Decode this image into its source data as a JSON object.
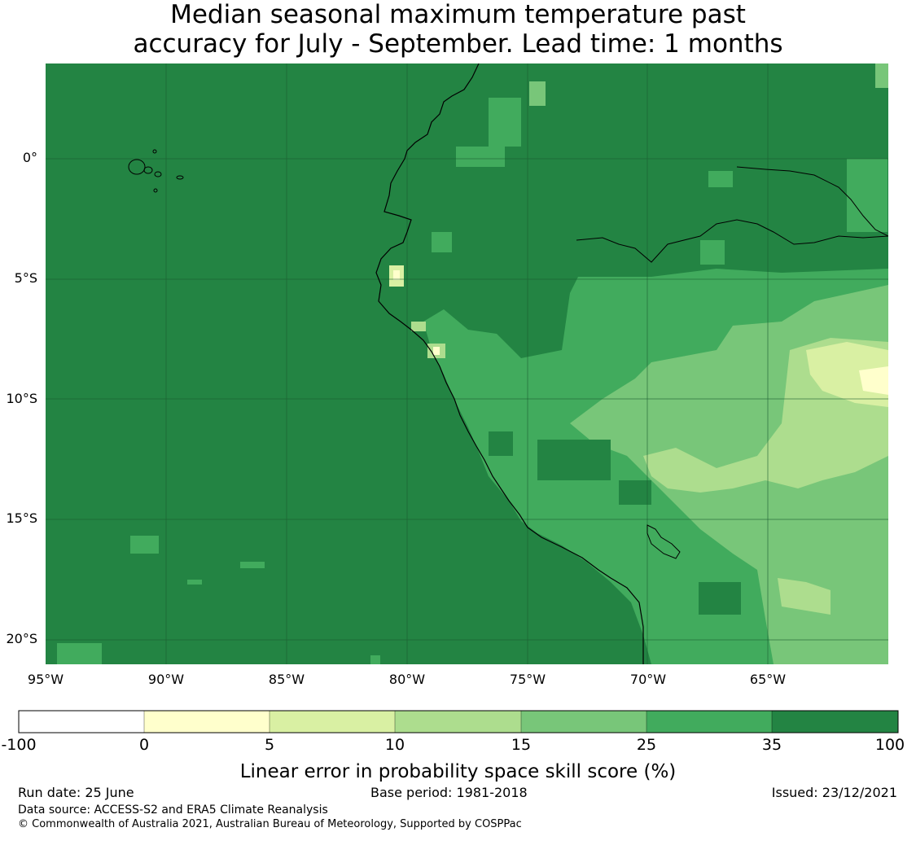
{
  "title": {
    "line1": "Median seasonal maximum temperature past",
    "line2": "accuracy for July - September. Lead time: 1 months"
  },
  "map": {
    "lat_labels": [
      "0°",
      "5°S",
      "10°S",
      "15°S",
      "20°S"
    ],
    "lon_labels": [
      "95°W",
      "90°W",
      "85°W",
      "80°W",
      "75°W",
      "70°W",
      "65°W"
    ],
    "region": "Western South America / Eastern Pacific",
    "colors": {
      "ocean_and_north": "#238443",
      "mid": "#41ab5d",
      "inland": "#78c679",
      "high_skill_light": "#addd8e",
      "lighter": "#d9f0a3",
      "lightest": "#ffffcc"
    }
  },
  "colorbar": {
    "tick_labels": [
      "-100",
      "0",
      "5",
      "10",
      "15",
      "25",
      "35",
      "100"
    ],
    "colors": [
      "#ffffff",
      "#ffffcc",
      "#d9f0a3",
      "#addd8e",
      "#78c679",
      "#41ab5d",
      "#238443"
    ],
    "title": "Linear error in probability space skill score (%)"
  },
  "footer": {
    "run_date": "Run date: 25 June",
    "base_period": "Base period: 1981-2018",
    "issued": "Issued: 23/12/2021",
    "data_source": "Data source: ACCESS-S2 and ERA5 Climate Reanalysis",
    "copyright": "© Commonwealth of Australia 2021, Australian Bureau of Meteorology, Supported by COSPPac"
  }
}
